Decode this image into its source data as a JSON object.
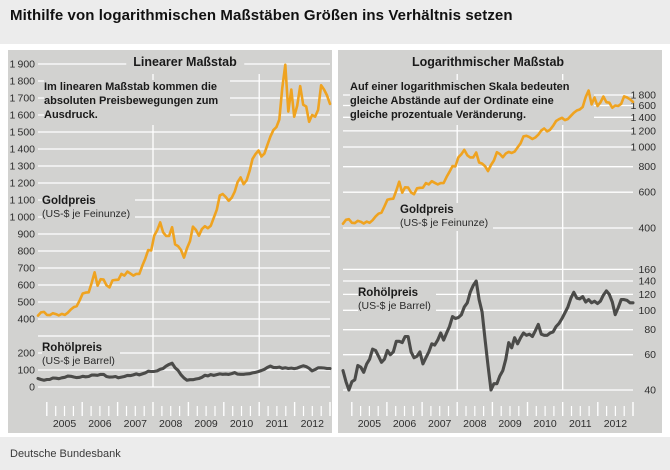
{
  "page": {
    "title": "Mithilfe von logarithmischen Maßstäben Größen ins Verhältnis setzen",
    "footer": "Deutsche Bundesbank"
  },
  "colors": {
    "gold": "#efa320",
    "oil": "#4b4b49",
    "panel_bg": "#d2d2d0",
    "gridline": "#ffffff",
    "page_bg": "#ececec",
    "frame_bg": "#ffffff"
  },
  "panels": {
    "linear": {
      "title": "Linearer Maßstab",
      "annotation": "Im linearen Maßstab kommen die absoluten Preisbewegungen zum Ausdruck."
    },
    "log": {
      "title": "Logarithmischer Maßstab",
      "annotation": "Auf einer logarithmischen Skala bedeuten gleiche Abstände auf der Ordinate eine gleiche prozentuale Veränderung."
    }
  },
  "series_labels": {
    "gold": {
      "name": "Goldpreis",
      "unit": "(US-$ je Feinunze)"
    },
    "oil": {
      "name": "Rohölpreis",
      "unit": "(US-$ je Barrel)"
    }
  },
  "chart_data": {
    "type": "line",
    "x_unit": "month",
    "x_start": "2004-10",
    "x_end": "2012-12",
    "x_tick_years": [
      2005,
      2006,
      2007,
      2008,
      2009,
      2010,
      2011,
      2012
    ],
    "vertical_gridline_years": [
      2008,
      2011
    ],
    "panels": [
      {
        "title": "Linearer Maßstab",
        "scale": "linear",
        "ylim": [
          0,
          1900
        ],
        "ytick_step": 100,
        "ytick_labels_skipped": [
          300
        ],
        "ylabel_side": "left"
      },
      {
        "title": "Logarithmischer Maßstab",
        "scale": "log",
        "gold_yticks": [
          400,
          600,
          800,
          1000,
          1200,
          1400,
          1600,
          1800
        ],
        "oil_yticks": [
          40,
          60,
          80,
          100,
          120,
          140,
          160
        ],
        "ylabel_side": "right"
      }
    ],
    "series": [
      {
        "name": "Goldpreis",
        "unit": "US-$ je Feinunze",
        "color": "#efa320",
        "values": [
          420,
          439,
          442,
          424,
          423,
          434,
          429,
          421,
          430,
          424,
          437,
          456,
          470,
          476,
          510,
          550,
          555,
          557,
          611,
          675,
          596,
          634,
          632,
          598,
          586,
          627,
          630,
          631,
          665,
          655,
          679,
          667,
          655,
          665,
          665,
          713,
          755,
          806,
          803,
          890,
          922,
          968,
          910,
          889,
          889,
          940,
          839,
          829,
          806,
          761,
          816,
          858,
          943,
          924,
          890,
          929,
          946,
          934,
          949,
          996,
          1043,
          1127,
          1135,
          1118,
          1095,
          1113,
          1149,
          1205,
          1233,
          1193,
          1216,
          1271,
          1342,
          1370,
          1391,
          1356,
          1373,
          1424,
          1473,
          1511,
          1529,
          1573,
          1760,
          1895,
          1620,
          1750,
          1590,
          1655,
          1770,
          1660,
          1650,
          1560,
          1600,
          1590,
          1630,
          1775,
          1750,
          1715,
          1665
        ]
      },
      {
        "name": "Rohölpreis",
        "unit": "US-$ je Barrel",
        "color": "#4b4b49",
        "values": [
          50,
          44,
          40,
          44,
          45,
          53,
          52,
          49,
          54,
          57,
          64,
          63,
          59,
          55,
          57,
          63,
          60,
          62,
          70,
          70,
          69,
          74,
          74,
          62,
          58,
          59,
          62,
          54,
          58,
          62,
          68,
          67,
          71,
          77,
          71,
          77,
          83,
          93,
          91,
          92,
          95,
          104,
          109,
          123,
          133,
          140,
          113,
          98,
          72,
          53,
          40,
          43,
          43,
          47,
          50,
          57,
          69,
          65,
          73,
          68,
          73,
          77,
          75,
          76,
          74,
          79,
          85,
          76,
          75,
          75,
          77,
          78,
          83,
          86,
          91,
          97,
          104,
          115,
          123,
          115,
          114,
          117,
          110,
          113,
          109,
          111,
          108,
          111,
          119,
          125,
          120,
          110,
          95,
          103,
          113,
          113,
          112,
          109,
          109
        ]
      }
    ]
  }
}
